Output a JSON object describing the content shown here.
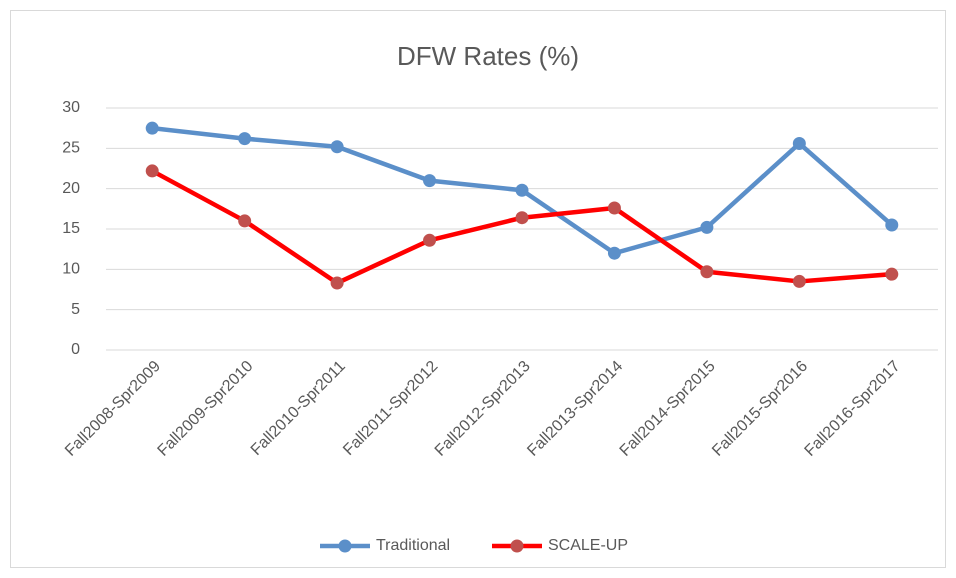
{
  "chart_data": {
    "type": "line",
    "title": "DFW Rates (%)",
    "categories": [
      "Fall2008-Spr2009",
      "Fall2009-Spr2010",
      "Fall2010-Spr2011",
      "Fall2011-Spr2012",
      "Fall2012-Spr2013",
      "Fall2013-Spr2014",
      "Fall2014-Spr2015",
      "Fall2015-Spr2016",
      "Fall2016-Spr2017"
    ],
    "series": [
      {
        "name": "Traditional",
        "color": "#5b8fc9",
        "marker_color": "#5b8fc9",
        "values": [
          27.5,
          26.2,
          25.2,
          21.0,
          19.8,
          12.0,
          15.2,
          25.6,
          15.5
        ]
      },
      {
        "name": "SCALE-UP",
        "color": "#ff0000",
        "marker_color": "#c0504d",
        "values": [
          22.2,
          16.0,
          8.3,
          13.6,
          16.4,
          17.6,
          9.7,
          8.5,
          9.4
        ]
      }
    ],
    "ylim": [
      0,
      30
    ],
    "yticks": [
      0,
      5,
      10,
      15,
      20,
      25,
      30
    ],
    "grid": true,
    "legend": "bottom"
  }
}
